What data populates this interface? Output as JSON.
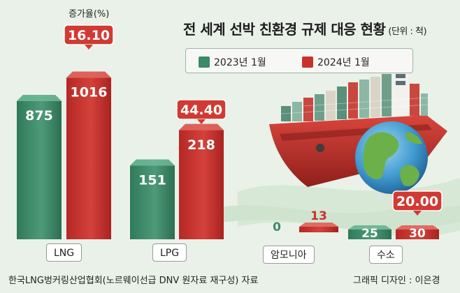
{
  "title": "전 세계 선박 친환경 규제 대응 현황",
  "unit": "(단위 : 척)",
  "growth_label": "증가율(%)",
  "legend": [
    {
      "label": "2023년 1월",
      "color": "#3b8a68"
    },
    {
      "label": "2024년 1월",
      "color": "#c8322d"
    }
  ],
  "source": "한국LNG벙커링산업협회(노르웨이선급 DNV 원자료 재구성) 자료",
  "credit": "그래픽 디자인 : 이은경",
  "chart_data": {
    "type": "bar",
    "categories": [
      "LNG",
      "LPG",
      "암모니아",
      "수소"
    ],
    "series": [
      {
        "name": "2023년 1월",
        "values": [
          875,
          151,
          0,
          25
        ],
        "value_labels": [
          "875",
          "151",
          "0",
          "25"
        ]
      },
      {
        "name": "2024년 1월",
        "values": [
          1016,
          218,
          13,
          30
        ],
        "value_labels": [
          "1016",
          "218",
          "13",
          "30"
        ]
      }
    ],
    "growth_rates": [
      "16.10",
      "44.40",
      "",
      "20.00"
    ],
    "ylabel": "",
    "xlabel": ""
  }
}
